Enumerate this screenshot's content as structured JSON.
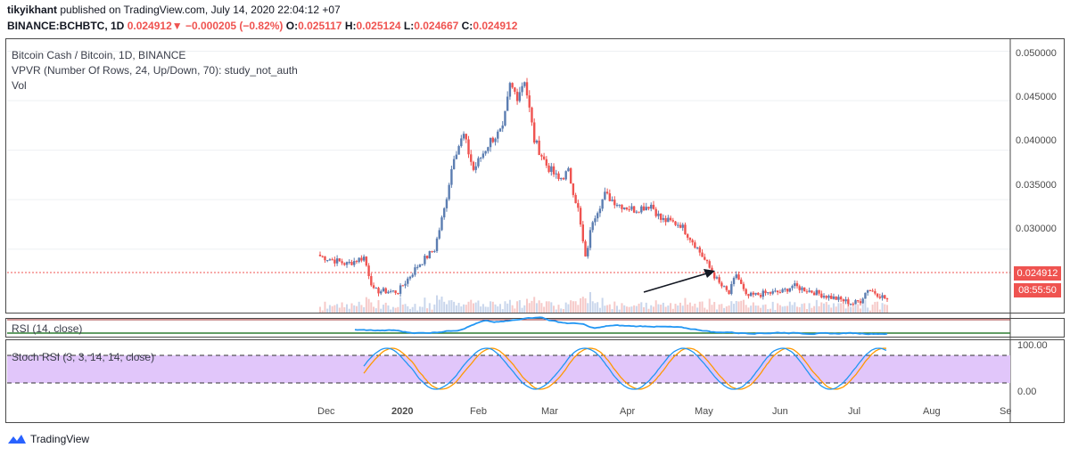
{
  "header": {
    "author": "tikyikhant",
    "published": "published on TradingView.com, July 14, 2020 22:04:12 +07",
    "symbol": "BINANCE:BCHBTC, 1D",
    "last": "0.024912",
    "change": "−0.000205 (−0.82%)",
    "o_label": "O:",
    "o": "0.025117",
    "h_label": "H:",
    "h": "0.025124",
    "l_label": "L:",
    "l": "0.024667",
    "c_label": "C:",
    "c": "0.024912"
  },
  "legends": {
    "title": "Bitcoin Cash / Bitcoin, 1D, BINANCE",
    "vpvr": "VPVR (Number Of Rows, 24, Up/Down, 70): study_not_auth",
    "vol": "Vol",
    "rsi": "RSI (14, close)",
    "stoch": "Stoch RSI (3, 3, 14, 14, close)"
  },
  "price_axis": [
    "0.050000",
    "0.045000",
    "0.040000",
    "0.035000",
    "0.030000"
  ],
  "price_tag": "0.024912",
  "time_tag": "08:55:50",
  "stoch_axis": [
    "100.00",
    "0.00"
  ],
  "x_axis": [
    "Dec",
    "2020",
    "Feb",
    "Mar",
    "Apr",
    "May",
    "Jun",
    "Jul",
    "Aug",
    "Se"
  ],
  "branding": "TradingView",
  "colors": {
    "up": "#5b7db1",
    "down": "#ef5350",
    "rsi": "#2196f3",
    "stoch_k": "#2196f3",
    "stoch_d": "#ff9800",
    "stoch_band": "#e1c6fa",
    "rsi_line": "#4caf50"
  },
  "chart_data": {
    "type": "candlestick",
    "title": "Bitcoin Cash / Bitcoin, 1D, BINANCE",
    "x_labels": [
      "Dec",
      "2020",
      "Feb",
      "Mar",
      "Apr",
      "May",
      "Jun",
      "Jul",
      "Aug"
    ],
    "ylim": [
      0.0235,
      0.0513
    ],
    "last_price": 0.024912,
    "approx_close_path": [
      {
        "date": "2019-11-24",
        "close": 0.0293
      },
      {
        "date": "2019-12-05",
        "close": 0.0285
      },
      {
        "date": "2019-12-12",
        "close": 0.0292
      },
      {
        "date": "2019-12-16",
        "close": 0.0258
      },
      {
        "date": "2019-12-26",
        "close": 0.0257
      },
      {
        "date": "2020-01-03",
        "close": 0.0283
      },
      {
        "date": "2020-01-10",
        "close": 0.03
      },
      {
        "date": "2020-01-14",
        "close": 0.034
      },
      {
        "date": "2020-01-18",
        "close": 0.0395
      },
      {
        "date": "2020-01-22",
        "close": 0.0415
      },
      {
        "date": "2020-01-26",
        "close": 0.038
      },
      {
        "date": "2020-02-02",
        "close": 0.041
      },
      {
        "date": "2020-02-07",
        "close": 0.042
      },
      {
        "date": "2020-02-10",
        "close": 0.0465
      },
      {
        "date": "2020-02-13",
        "close": 0.0455
      },
      {
        "date": "2020-02-16",
        "close": 0.0472
      },
      {
        "date": "2020-02-20",
        "close": 0.041
      },
      {
        "date": "2020-02-25",
        "close": 0.0385
      },
      {
        "date": "2020-03-01",
        "close": 0.037
      },
      {
        "date": "2020-03-05",
        "close": 0.0378
      },
      {
        "date": "2020-03-09",
        "close": 0.034
      },
      {
        "date": "2020-03-12",
        "close": 0.029
      },
      {
        "date": "2020-03-15",
        "close": 0.033
      },
      {
        "date": "2020-03-20",
        "close": 0.0355
      },
      {
        "date": "2020-03-26",
        "close": 0.0345
      },
      {
        "date": "2020-04-01",
        "close": 0.034
      },
      {
        "date": "2020-04-08",
        "close": 0.0345
      },
      {
        "date": "2020-04-12",
        "close": 0.033
      },
      {
        "date": "2020-04-20",
        "close": 0.0325
      },
      {
        "date": "2020-04-26",
        "close": 0.0305
      },
      {
        "date": "2020-05-01",
        "close": 0.0285
      },
      {
        "date": "2020-05-06",
        "close": 0.0265
      },
      {
        "date": "2020-05-10",
        "close": 0.0255
      },
      {
        "date": "2020-05-13",
        "close": 0.0275
      },
      {
        "date": "2020-05-17",
        "close": 0.0252
      },
      {
        "date": "2020-05-24",
        "close": 0.0255
      },
      {
        "date": "2020-06-01",
        "close": 0.0257
      },
      {
        "date": "2020-06-05",
        "close": 0.0263
      },
      {
        "date": "2020-06-12",
        "close": 0.0258
      },
      {
        "date": "2020-06-20",
        "close": 0.0252
      },
      {
        "date": "2020-06-26",
        "close": 0.0248
      },
      {
        "date": "2020-06-30",
        "close": 0.0245
      },
      {
        "date": "2020-07-03",
        "close": 0.0248
      },
      {
        "date": "2020-07-06",
        "close": 0.026
      },
      {
        "date": "2020-07-10",
        "close": 0.0255
      },
      {
        "date": "2020-07-14",
        "close": 0.0249
      }
    ]
  }
}
